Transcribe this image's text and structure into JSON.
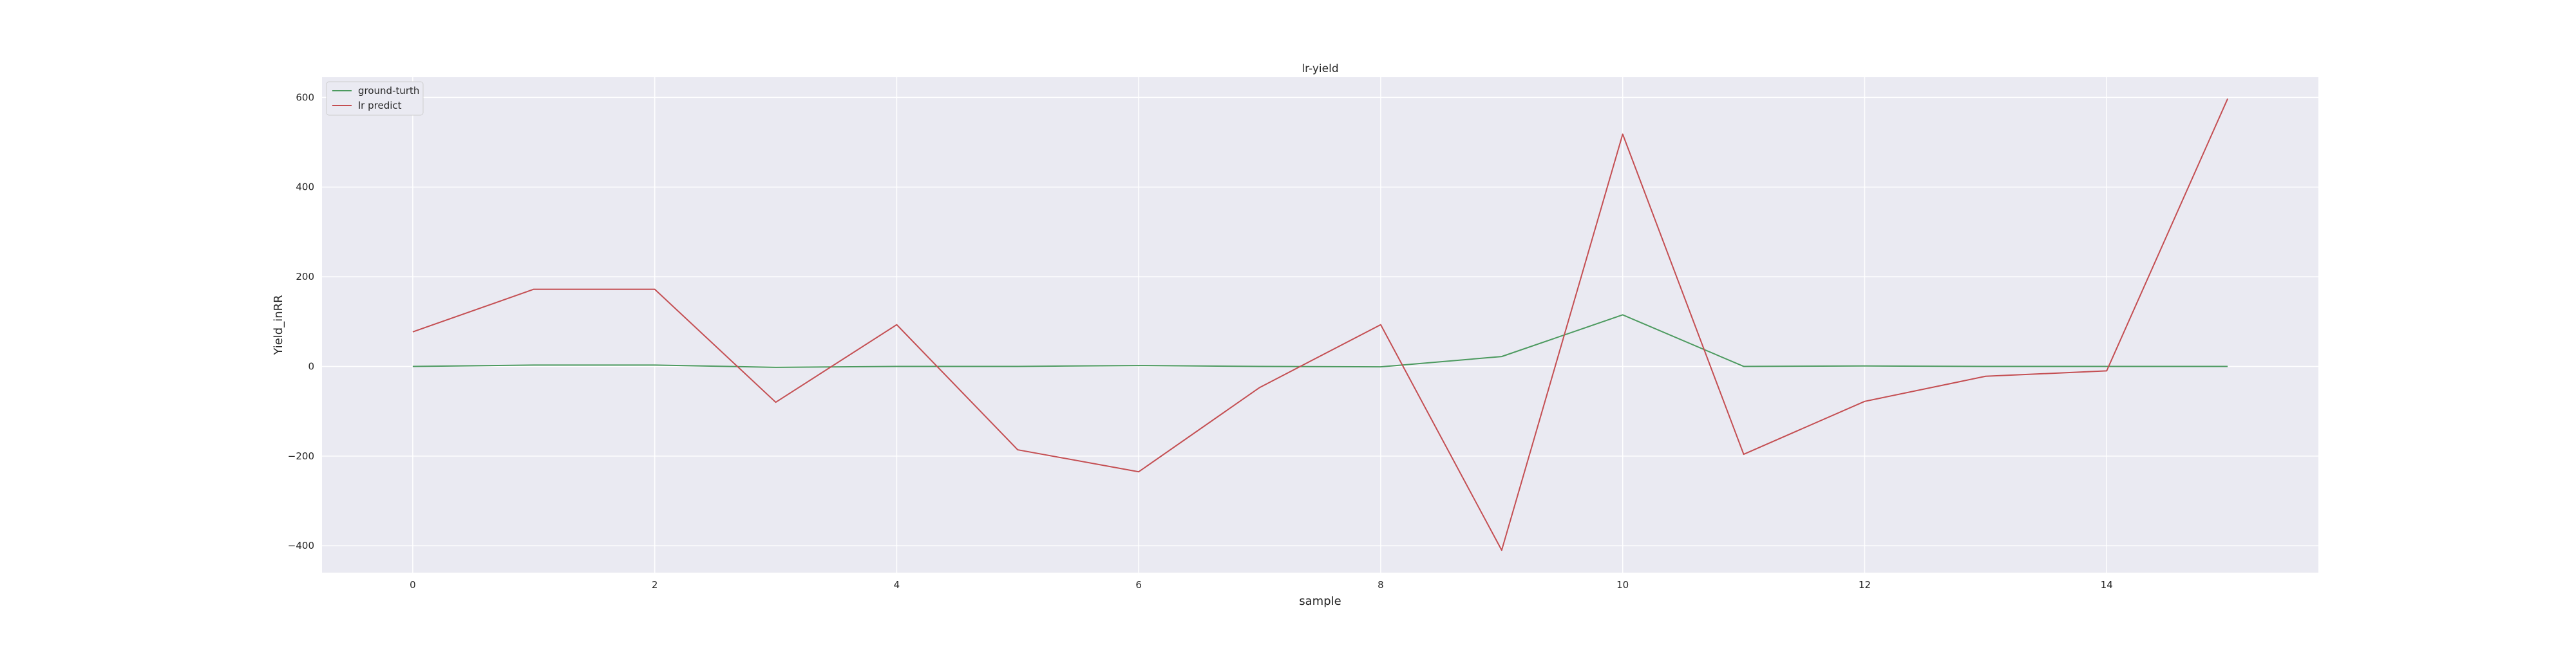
{
  "chart_data": {
    "type": "line",
    "title": "lr-yield",
    "xlabel": "sample",
    "ylabel": "Yield_inRR",
    "x": [
      0,
      1,
      2,
      3,
      4,
      5,
      6,
      7,
      8,
      9,
      10,
      11,
      12,
      13,
      14,
      15
    ],
    "xlim": [
      -0.75,
      15.75
    ],
    "ylim": [
      -460,
      645
    ],
    "xticks": [
      0,
      2,
      4,
      6,
      8,
      10,
      12,
      14
    ],
    "yticks": [
      -400,
      -200,
      0,
      200,
      400,
      600
    ],
    "xtick_labels": [
      "0",
      "2",
      "4",
      "6",
      "8",
      "10",
      "12",
      "14"
    ],
    "ytick_labels": [
      "−400",
      "−200",
      "0",
      "200",
      "400",
      "600"
    ],
    "grid": true,
    "legend_position": "top-left",
    "series": [
      {
        "name": "ground-turth",
        "color": "#4c9a5f",
        "values": [
          0,
          3,
          3,
          -2,
          0,
          0,
          2,
          0,
          -1,
          22,
          115,
          0,
          1,
          0,
          0,
          0
        ]
      },
      {
        "name": "lr predict",
        "color": "#c44e52",
        "values": [
          77,
          172,
          172,
          -80,
          93,
          -186,
          -235,
          -47,
          93,
          -410,
          518,
          -196,
          -78,
          -22,
          -10,
          597
        ]
      }
    ]
  }
}
